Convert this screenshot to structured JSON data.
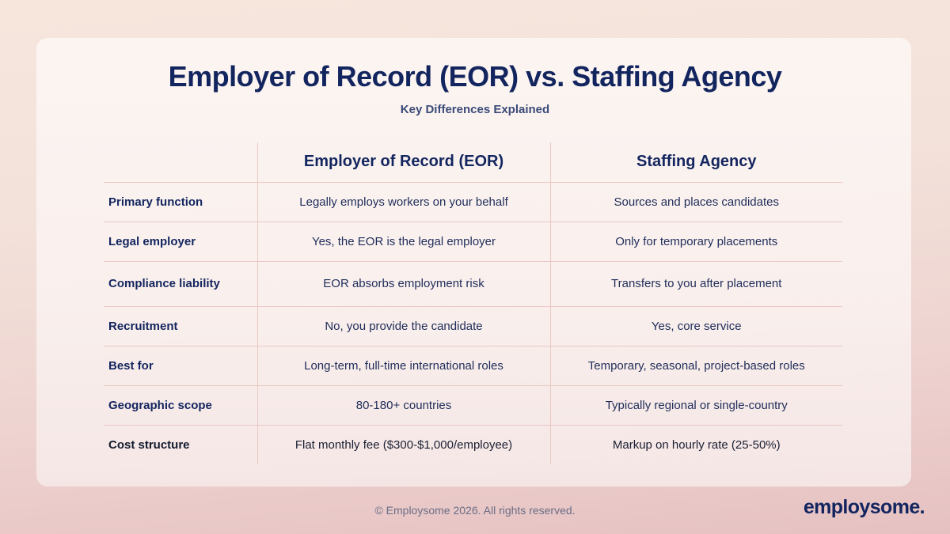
{
  "header": {
    "title": "Employer of Record (EOR) vs. Staffing Agency",
    "subtitle": "Key Differences Explained"
  },
  "table": {
    "columns": [
      "",
      "Employer of Record (EOR)",
      "Staffing Agency"
    ],
    "rows": [
      {
        "label": "Primary function",
        "eor": "Legally employs workers on your behalf",
        "staffing": "Sources and places candidates"
      },
      {
        "label": "Legal employer",
        "eor": "Yes, the EOR is the legal employer",
        "staffing": "Only for temporary placements"
      },
      {
        "label": "Compliance liability",
        "eor": "EOR absorbs employment risk",
        "staffing": "Transfers to you after placement"
      },
      {
        "label": "Recruitment",
        "eor": "No, you provide the candidate",
        "staffing": "Yes, core service"
      },
      {
        "label": "Best for",
        "eor": "Long-term, full-time international roles",
        "staffing": "Temporary, seasonal, project-based roles"
      },
      {
        "label": "Geographic scope",
        "eor": "80-180+ countries",
        "staffing": "Typically regional or single-country"
      },
      {
        "label": "Cost structure",
        "eor": "Flat monthly fee ($300-$1,000/employee)",
        "staffing": "Markup on hourly rate (25-50%)"
      }
    ]
  },
  "footer": {
    "copyright": "© Employsome 2026. All rights reserved.",
    "logo": "employsome."
  },
  "colors": {
    "navy": "#13255f",
    "divider": "#ecc7c4",
    "background_top": "#f6e6dc",
    "background_bottom": "#e6c1c2"
  }
}
